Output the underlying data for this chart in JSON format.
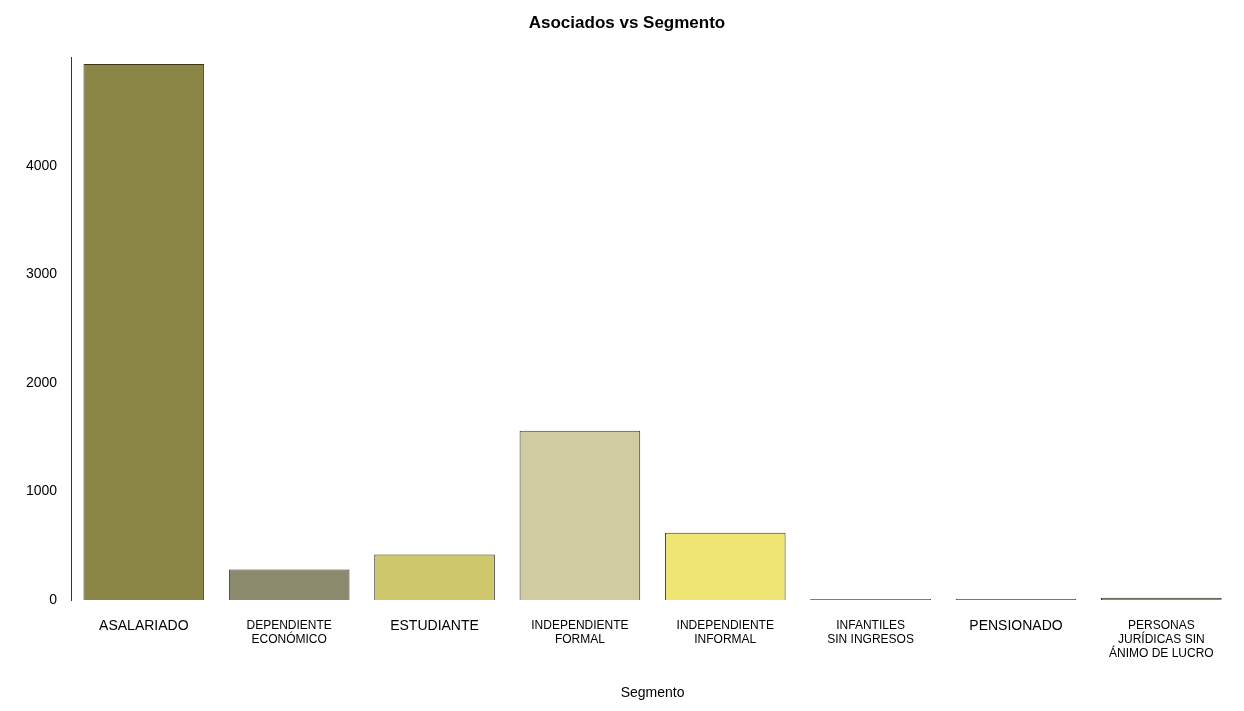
{
  "chart_data": {
    "type": "bar",
    "title": "Asociados vs Segmento",
    "xlabel": "Segmento",
    "categories": [
      "ASALARIADO",
      "DEPENDIENTE\nECONÓMICO",
      "ESTUDIANTE",
      "INDEPENDIENTE\nFORMAL",
      "INDEPENDIENTE\nINFORMAL",
      "INFANTILES\nSIN INGRESOS",
      "PENSIONADO",
      "PERSONAS\nJURÍDICAS SIN\nÁNIMO DE LUCRO"
    ],
    "values": [
      4940,
      280,
      420,
      1560,
      620,
      10,
      10,
      20
    ],
    "colors": [
      "#8b8645",
      "#8b8a6c",
      "#cfc76b",
      "#cfcca2",
      "#efe574",
      "#6b6a4a",
      "#555545",
      "#8b8a6c"
    ],
    "ylim": [
      0,
      5000
    ],
    "yticks": [
      0,
      1000,
      2000,
      3000,
      4000
    ],
    "grid": false,
    "legend": false
  }
}
